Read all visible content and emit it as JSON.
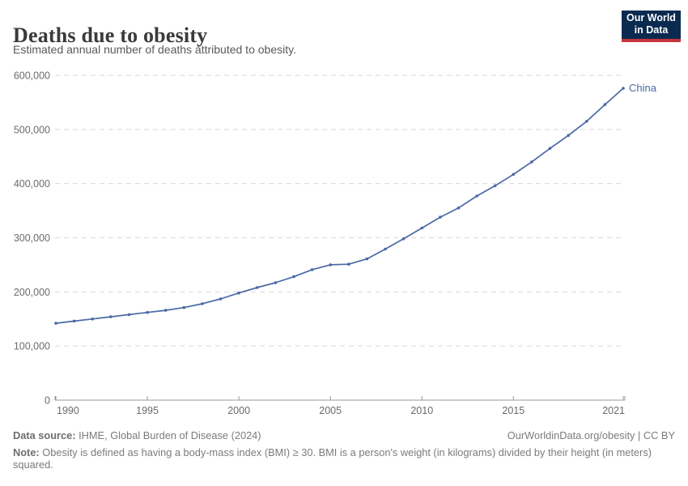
{
  "header": {
    "title": "Deaths due to obesity",
    "subtitle": "Estimated annual number of deaths attributed to obesity."
  },
  "logo": {
    "line1": "Our World",
    "line2": "in Data",
    "bg_color": "#0a2a50",
    "bar_color": "#c5353c"
  },
  "chart_data": {
    "type": "line",
    "title": "Deaths due to obesity",
    "xlabel": "",
    "ylabel": "",
    "xlim": [
      1990,
      2021
    ],
    "ylim": [
      0,
      600000
    ],
    "grid": "horizontal-dashed",
    "legend": "line-end-label",
    "colors": {
      "line": "#4a69a5",
      "grid": "#d9d9d9",
      "axis": "#9a9a9a",
      "tick_text": "#6b6b6b"
    },
    "xticks": [
      {
        "value": 1990,
        "label": "1990"
      },
      {
        "value": 1995,
        "label": "1995"
      },
      {
        "value": 2000,
        "label": "2000"
      },
      {
        "value": 2005,
        "label": "2005"
      },
      {
        "value": 2010,
        "label": "2010"
      },
      {
        "value": 2015,
        "label": "2015"
      },
      {
        "value": 2021,
        "label": "2021"
      }
    ],
    "yticks": [
      {
        "value": 0,
        "label": "0"
      },
      {
        "value": 100000,
        "label": "100,000"
      },
      {
        "value": 200000,
        "label": "200,000"
      },
      {
        "value": 300000,
        "label": "300,000"
      },
      {
        "value": 400000,
        "label": "400,000"
      },
      {
        "value": 500000,
        "label": "500,000"
      },
      {
        "value": 600000,
        "label": "600,000"
      }
    ],
    "series": [
      {
        "name": "China",
        "color": "#4a69a5",
        "x": [
          1990,
          1991,
          1992,
          1993,
          1994,
          1995,
          1996,
          1997,
          1998,
          1999,
          2000,
          2001,
          2002,
          2003,
          2004,
          2005,
          2006,
          2007,
          2008,
          2009,
          2010,
          2011,
          2012,
          2013,
          2014,
          2015,
          2016,
          2017,
          2018,
          2019,
          2020,
          2021
        ],
        "values": [
          142000,
          146000,
          150000,
          154000,
          158000,
          162000,
          166000,
          171000,
          178000,
          187000,
          198000,
          208000,
          217000,
          228000,
          241000,
          250000,
          251000,
          261000,
          279000,
          298000,
          318000,
          338000,
          355000,
          377000,
          396000,
          417000,
          440000,
          465000,
          489000,
          515000,
          546000,
          576000
        ]
      }
    ]
  },
  "footer": {
    "source_label": "Data source:",
    "source_value": " IHME, Global Burden of Disease (2024)",
    "rights": "OurWorldinData.org/obesity | CC BY",
    "note_label": "Note:",
    "note_text": " Obesity is defined as having a body-mass index (BMI) ≥ 30. BMI is a person's weight (in kilograms) divided by their height (in meters) squared."
  }
}
